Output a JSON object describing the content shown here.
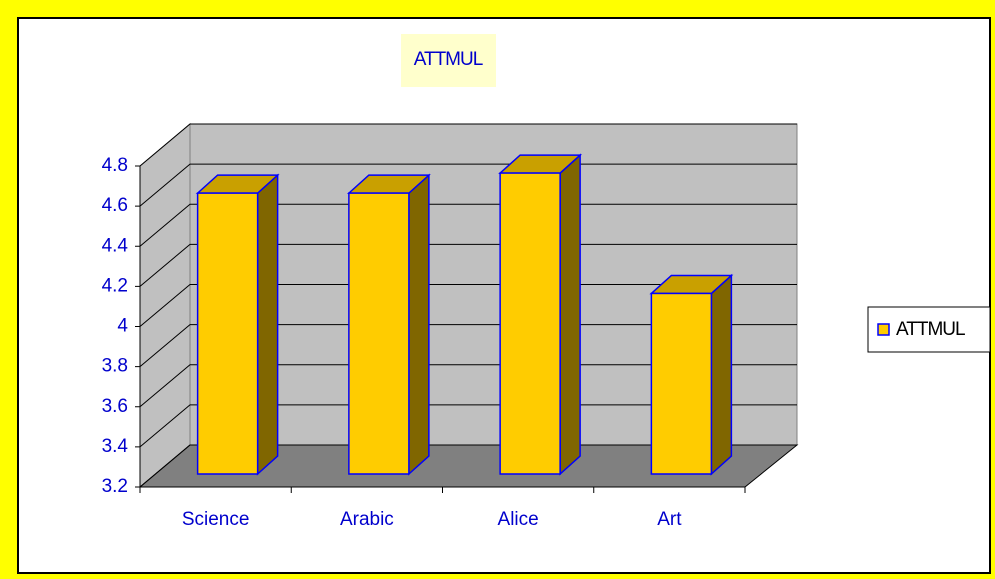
{
  "chart_data": {
    "type": "bar",
    "title": "ATTMUL",
    "categories": [
      "Science",
      "Arabic",
      "Alice",
      "Art"
    ],
    "series": [
      {
        "name": "ATTMUL",
        "color": "#ffcc00",
        "values": [
          4.6,
          4.6,
          4.7,
          4.1
        ]
      }
    ],
    "ylim": [
      3.2,
      4.8
    ],
    "yticks": [
      3.2,
      3.4,
      3.6,
      3.8,
      4,
      4.2,
      4.4,
      4.6,
      4.8
    ],
    "grid": true,
    "legend": "right"
  }
}
